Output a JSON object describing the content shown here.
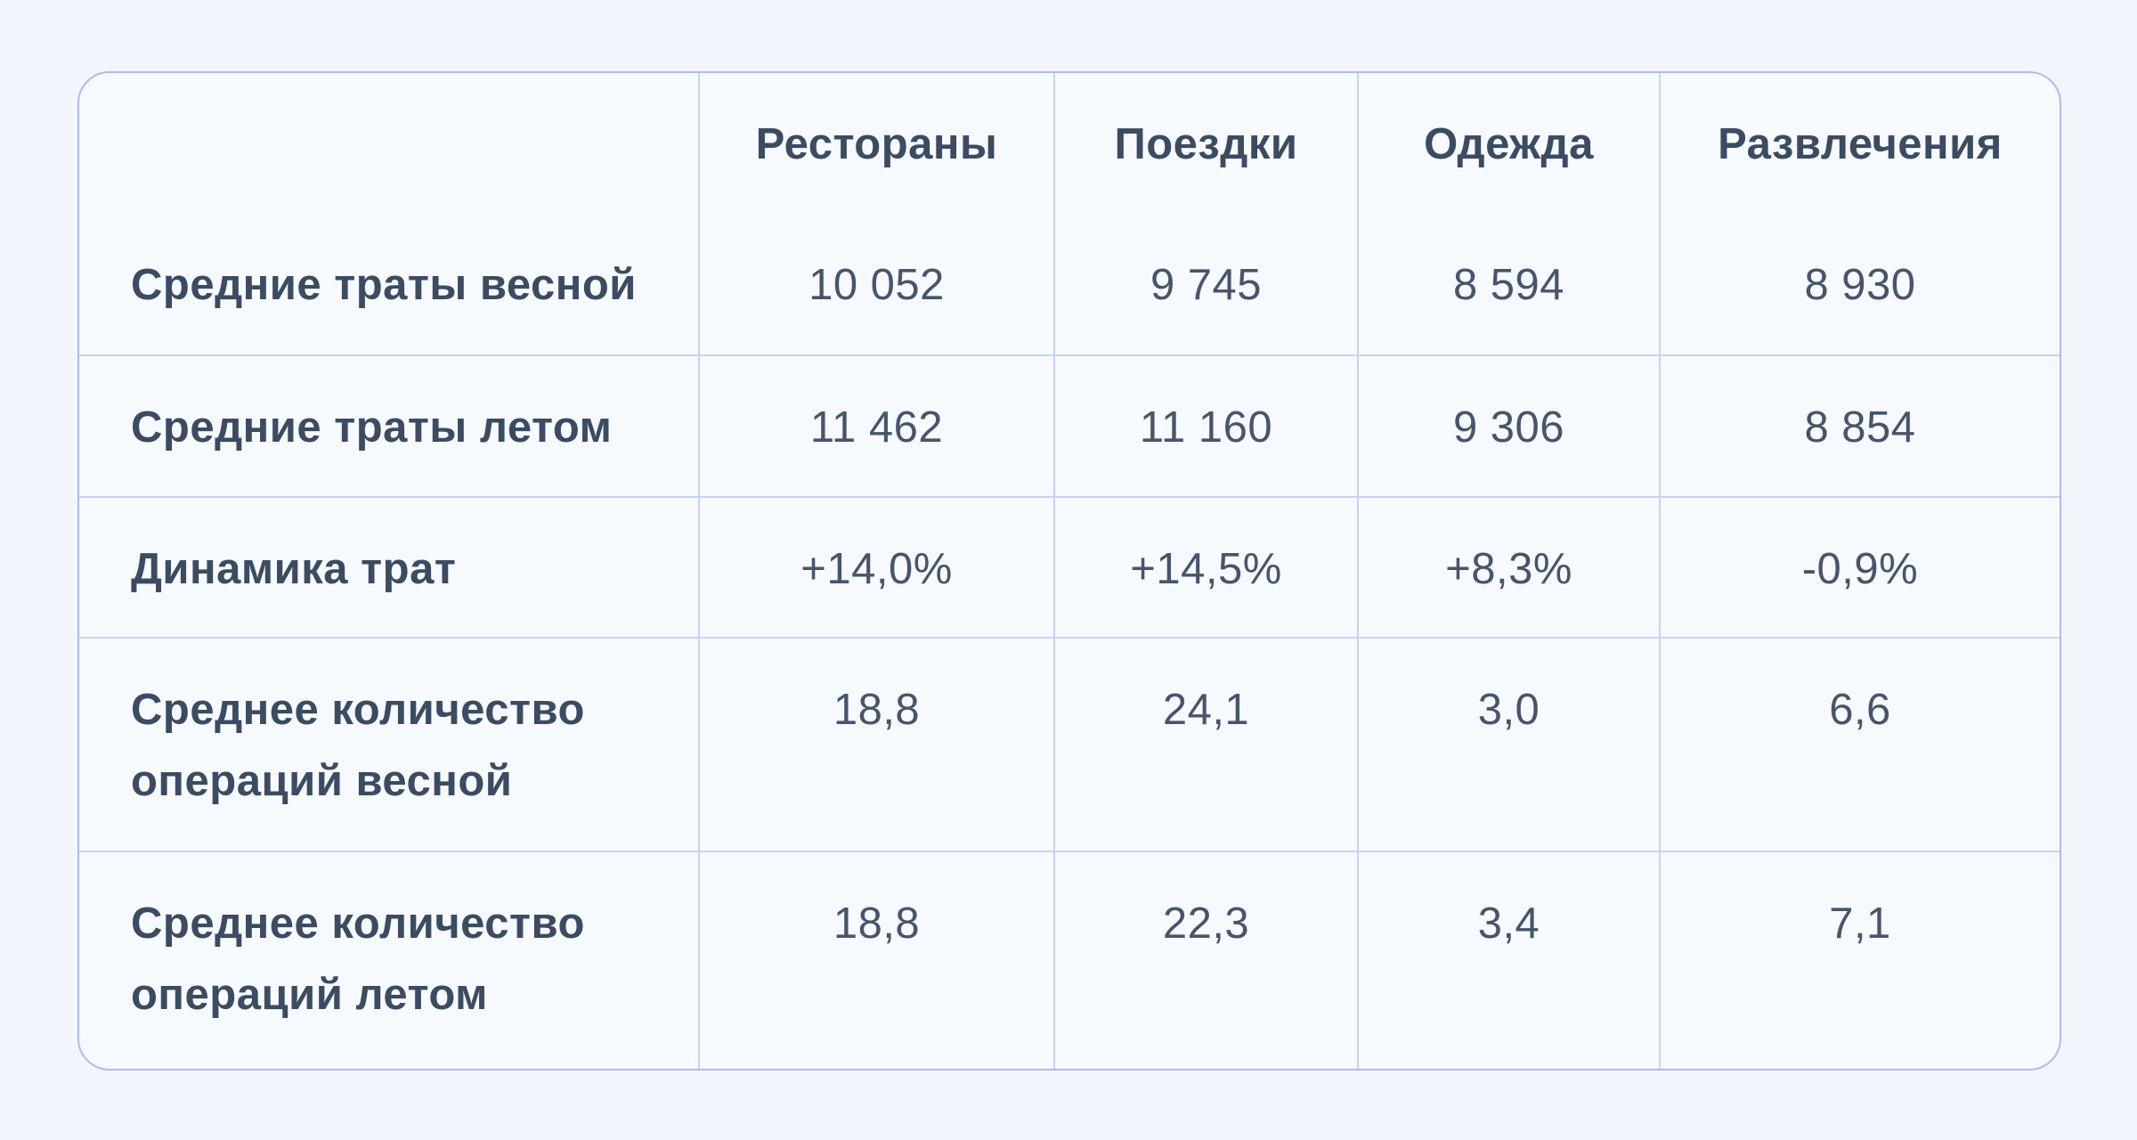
{
  "colors": {
    "page_background": "#f2f5fc",
    "table_background": "#f6f9fe",
    "outer_border": "#aebcec",
    "grid_line": "#c8d3f4",
    "heading_text": "#3b4b62",
    "value_text": "#46556c"
  },
  "chart_data": {
    "type": "table",
    "columns": [
      "",
      "Рестораны",
      "Поездки",
      "Одежда",
      "Развлечения"
    ],
    "rows": [
      {
        "label": "Средние траты весной",
        "values": [
          "10 052",
          "9 745",
          "8 594",
          "8 930"
        ]
      },
      {
        "label": "Средние траты летом",
        "values": [
          "11 462",
          "11 160",
          "9 306",
          "8 854"
        ]
      },
      {
        "label": "Динамика трат",
        "values": [
          "+14,0%",
          "+14,5%",
          "+8,3%",
          "-0,9%"
        ]
      },
      {
        "label": "Среднее количество операций весной",
        "values": [
          "18,8",
          "24,1",
          "3,0",
          "6,6"
        ]
      },
      {
        "label": "Среднее количество операций летом",
        "values": [
          "18,8",
          "22,3",
          "3,4",
          "7,1"
        ]
      }
    ]
  }
}
